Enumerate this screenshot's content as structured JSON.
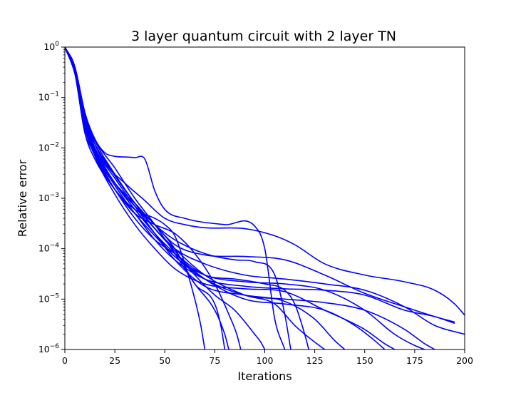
{
  "chart_data": {
    "type": "line",
    "title": "3 layer quantum circuit with 2 layer TN",
    "xlabel": "Iterations",
    "ylabel": "Relative error",
    "xlim": [
      0,
      200
    ],
    "ylim": [
      1e-06,
      1
    ],
    "yscale": "log",
    "grid": false,
    "line_color": "#0000ff",
    "x_ticks": [
      {
        "value": 0,
        "label": "0"
      },
      {
        "value": 25,
        "label": "25"
      },
      {
        "value": 50,
        "label": "50"
      },
      {
        "value": 75,
        "label": "75"
      },
      {
        "value": 100,
        "label": "100"
      },
      {
        "value": 125,
        "label": "125"
      },
      {
        "value": 150,
        "label": "150"
      },
      {
        "value": 175,
        "label": "175"
      },
      {
        "value": 200,
        "label": "200"
      }
    ],
    "y_ticks": [
      {
        "value": 1,
        "base": "10",
        "exp": "0"
      },
      {
        "value": 0.1,
        "base": "10",
        "exp": "−1"
      },
      {
        "value": 0.01,
        "base": "10",
        "exp": "−2"
      },
      {
        "value": 0.001,
        "base": "10",
        "exp": "−3"
      },
      {
        "value": 0.0001,
        "base": "10",
        "exp": "−4"
      },
      {
        "value": 1e-05,
        "base": "10",
        "exp": "−5"
      },
      {
        "value": 1e-06,
        "base": "10",
        "exp": "−6"
      }
    ],
    "series": [
      {
        "x": [
          0,
          5,
          10,
          15,
          20,
          30,
          40,
          50,
          60,
          70,
          90,
          105,
          115,
          130,
          150,
          170,
          185,
          195,
          200
        ],
        "y": [
          1,
          0.4,
          0.05,
          0.012,
          0.005,
          0.002,
          0.0009,
          0.0004,
          0.0003,
          0.00026,
          0.00025,
          0.00018,
          0.00012,
          5e-05,
          3e-05,
          2.2e-05,
          1.5e-05,
          8e-06,
          4.8e-06
        ]
      },
      {
        "x": [
          0,
          5,
          10,
          15,
          20,
          25,
          35,
          45,
          50,
          55,
          60,
          65,
          68,
          70
        ],
        "y": [
          1,
          0.35,
          0.03,
          0.008,
          0.003,
          0.0015,
          0.0006,
          0.0004,
          0.0003,
          0.00018,
          5e-05,
          1e-05,
          3e-06,
          1e-06
        ]
      },
      {
        "x": [
          0,
          5,
          10,
          15,
          25,
          35,
          45,
          55,
          65,
          75,
          78,
          80
        ],
        "y": [
          1,
          0.4,
          0.04,
          0.01,
          0.002,
          0.0007,
          0.0003,
          0.0001,
          2e-05,
          8e-06,
          3e-06,
          1e-06
        ]
      },
      {
        "x": [
          0,
          5,
          10,
          15,
          25,
          35,
          45,
          55,
          65,
          75,
          82,
          86,
          88
        ],
        "y": [
          1,
          0.3,
          0.02,
          0.006,
          0.0015,
          0.0005,
          0.0003,
          0.0002,
          8e-05,
          2e-05,
          5e-06,
          2e-06,
          1e-06
        ]
      },
      {
        "x": [
          0,
          5,
          10,
          15,
          20,
          25,
          30,
          35,
          40,
          45,
          50,
          60,
          80,
          95,
          100,
          105,
          110
        ],
        "y": [
          1,
          0.4,
          0.05,
          0.015,
          0.008,
          0.0068,
          0.0066,
          0.0064,
          0.006,
          0.0014,
          0.0006,
          0.0004,
          0.0003,
          0.00028,
          0.0001,
          4e-06,
          1e-06
        ]
      },
      {
        "x": [
          0,
          5,
          10,
          15,
          25,
          35,
          45,
          55,
          70,
          85,
          95,
          105,
          110,
          113
        ],
        "y": [
          1,
          0.35,
          0.03,
          0.009,
          0.002,
          0.0008,
          0.0003,
          0.00015,
          8e-05,
          6e-05,
          5.5e-05,
          3e-05,
          5e-06,
          1e-06
        ]
      },
      {
        "x": [
          0,
          5,
          10,
          15,
          25,
          35,
          45,
          55,
          70,
          85,
          100,
          110,
          115,
          120,
          122
        ],
        "y": [
          1,
          0.3,
          0.025,
          0.007,
          0.0015,
          0.0004,
          0.00015,
          8e-05,
          3e-05,
          2.5e-05,
          2e-05,
          1.5e-05,
          8e-06,
          2e-06,
          1e-06
        ]
      },
      {
        "x": [
          0,
          5,
          10,
          15,
          25,
          35,
          45,
          55,
          70,
          90,
          110,
          130,
          150,
          170,
          185,
          195
        ],
        "y": [
          1,
          0.4,
          0.04,
          0.012,
          0.003,
          0.0008,
          0.0003,
          0.00012,
          7.5e-05,
          7e-05,
          6e-05,
          3e-05,
          1.3e-05,
          7e-06,
          4.5e-06,
          3.5e-06
        ]
      },
      {
        "x": [
          0,
          5,
          10,
          15,
          25,
          35,
          45,
          55,
          70,
          90,
          110,
          130,
          150,
          165,
          175,
          180
        ],
        "y": [
          1,
          0.35,
          0.035,
          0.01,
          0.002,
          0.0006,
          0.0002,
          7e-05,
          3e-05,
          2.2e-05,
          2e-05,
          1.5e-05,
          6e-06,
          2e-06,
          1.2e-06,
          1e-06
        ]
      },
      {
        "x": [
          0,
          5,
          10,
          15,
          25,
          35,
          45,
          55,
          70,
          90,
          110,
          130,
          150,
          170,
          185,
          195
        ],
        "y": [
          1,
          0.3,
          0.02,
          0.008,
          0.0015,
          0.0005,
          0.00015,
          6e-05,
          2.5e-05,
          1.8e-05,
          1.6e-05,
          1.5e-05,
          1.2e-05,
          6e-06,
          4.5e-06,
          3.3e-06
        ]
      },
      {
        "x": [
          0,
          5,
          10,
          15,
          25,
          35,
          45,
          55,
          70,
          90,
          110,
          130,
          145,
          155,
          160
        ],
        "y": [
          1,
          0.35,
          0.03,
          0.009,
          0.002,
          0.0006,
          0.0002,
          8e-05,
          2.5e-05,
          1e-05,
          8e-06,
          6e-06,
          3e-06,
          1.5e-06,
          1e-06
        ]
      },
      {
        "x": [
          0,
          5,
          10,
          15,
          25,
          35,
          45,
          55,
          70,
          90,
          105,
          115,
          125,
          130
        ],
        "y": [
          1,
          0.4,
          0.045,
          0.014,
          0.003,
          0.0008,
          0.00025,
          0.0001,
          3e-05,
          1.2e-05,
          8e-06,
          3e-06,
          1.4e-06,
          1e-06
        ]
      },
      {
        "x": [
          0,
          5,
          10,
          15,
          25,
          35,
          45,
          55,
          70,
          90,
          110,
          130,
          150,
          170,
          185,
          200
        ],
        "y": [
          1,
          0.3,
          0.03,
          0.01,
          0.002,
          0.0007,
          0.00025,
          0.0001,
          5e-05,
          3e-05,
          2.5e-05,
          2e-05,
          1.5e-05,
          7e-06,
          3e-06,
          2e-06
        ]
      },
      {
        "x": [
          0,
          5,
          10,
          15,
          25,
          35,
          45,
          55,
          70,
          90,
          110,
          130,
          150,
          170,
          180,
          185
        ],
        "y": [
          1,
          0.35,
          0.025,
          0.008,
          0.0018,
          0.0005,
          0.00018,
          7e-05,
          2.5e-05,
          1.2e-05,
          1e-05,
          8.5e-06,
          6e-06,
          2.5e-06,
          1.3e-06,
          1e-06
        ]
      },
      {
        "x": [
          0,
          5,
          10,
          15,
          25,
          35,
          45,
          55,
          70,
          90,
          110,
          125,
          135,
          140
        ],
        "y": [
          1,
          0.4,
          0.035,
          0.01,
          0.0025,
          0.0007,
          0.0002,
          6e-05,
          1.8e-05,
          1.2e-05,
          9e-06,
          4e-06,
          1.5e-06,
          1e-06
        ]
      },
      {
        "x": [
          0,
          5,
          10,
          15,
          25,
          35,
          45,
          55,
          70,
          90,
          110,
          130,
          150,
          160,
          165
        ],
        "y": [
          1,
          0.3,
          0.03,
          0.007,
          0.0012,
          0.0003,
          0.0001,
          4e-05,
          2e-05,
          1.6e-05,
          1.4e-05,
          6e-06,
          2.5e-06,
          1.3e-06,
          1e-06
        ]
      },
      {
        "x": [
          0,
          5,
          10,
          15,
          25,
          35,
          45,
          55,
          65,
          75,
          85,
          95,
          98,
          100
        ],
        "y": [
          1,
          0.35,
          0.04,
          0.012,
          0.0028,
          0.0008,
          0.00025,
          9e-05,
          3e-05,
          1.2e-05,
          6e-06,
          2e-06,
          1.4e-06,
          1e-06
        ]
      },
      {
        "x": [
          0,
          5,
          10,
          15,
          25,
          35,
          45,
          55,
          65,
          75,
          80,
          82
        ],
        "y": [
          1,
          0.4,
          0.05,
          0.015,
          0.004,
          0.001,
          0.0003,
          8e-05,
          2e-05,
          6e-06,
          2e-06,
          1e-06
        ]
      }
    ]
  }
}
